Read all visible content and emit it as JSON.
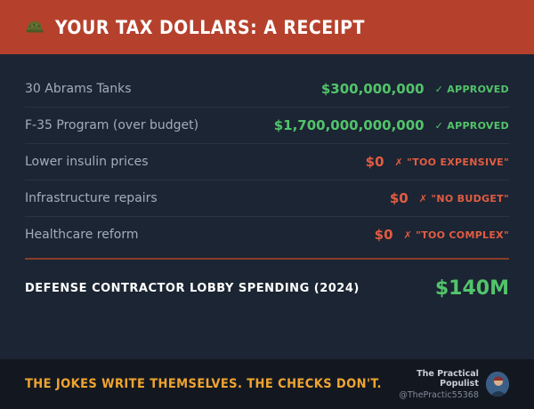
{
  "header": {
    "icon": "military-helmet-icon",
    "title": "YOUR TAX DOLLARS: A RECEIPT",
    "background": "#b5412c"
  },
  "items": [
    {
      "label": "30 Abrams Tanks",
      "amount": "$300,000,000",
      "status": "✓ APPROVED",
      "tone": "ok"
    },
    {
      "label": "F-35 Program (over budget)",
      "amount": "$1,700,000,000,000",
      "status": "✓ APPROVED",
      "tone": "ok"
    },
    {
      "label": "Lower insulin prices",
      "amount": "$0",
      "status": "✗ \"TOO EXPENSIVE\"",
      "tone": "no"
    },
    {
      "label": "Infrastructure repairs",
      "amount": "$0",
      "status": "✗ \"NO BUDGET\"",
      "tone": "no"
    },
    {
      "label": "Healthcare reform",
      "amount": "$0",
      "status": "✗ \"TOO COMPLEX\"",
      "tone": "no"
    }
  ],
  "total": {
    "label": "DEFENSE CONTRACTOR LOBBY SPENDING (2024)",
    "value": "$140M"
  },
  "footer": {
    "tagline": "THE JOKES WRITE THEMSELVES. THE CHECKS DON'T.",
    "author_name": "The Practical Populist",
    "author_handle": "@ThePractic55368"
  },
  "colors": {
    "approved": "#52c46b",
    "rejected": "#e25c42",
    "tagline": "#f0a431",
    "background": "#1c2533"
  }
}
